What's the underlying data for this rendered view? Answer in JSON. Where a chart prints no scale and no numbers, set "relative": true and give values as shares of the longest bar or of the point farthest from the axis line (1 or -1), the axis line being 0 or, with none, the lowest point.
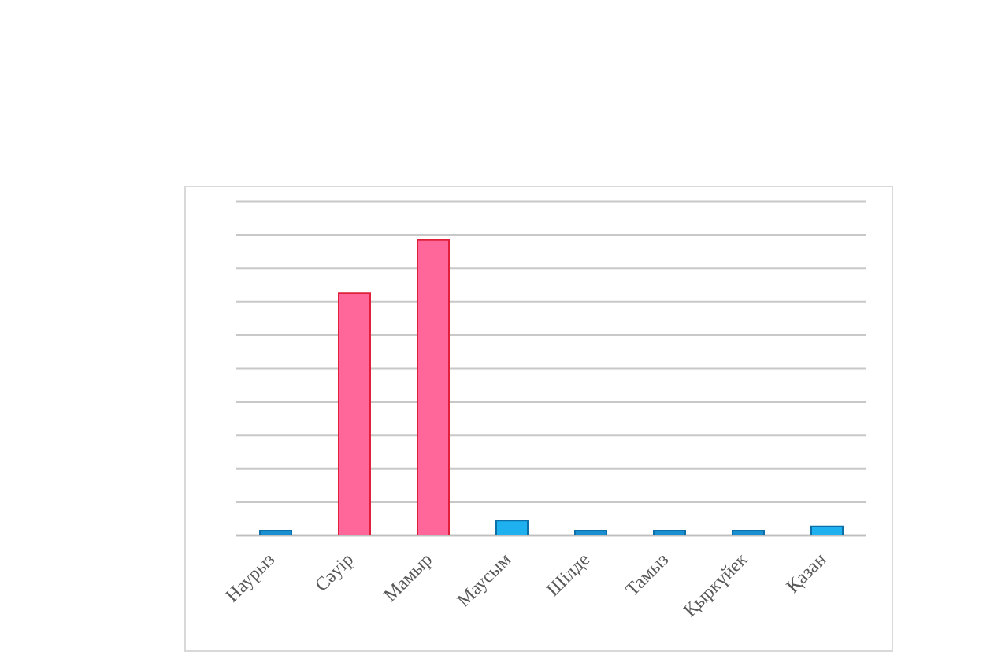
{
  "chart_data": {
    "type": "bar",
    "relative": true,
    "grid": "y",
    "categories": [
      "Наурыз",
      "Сәуір",
      "Мамыр",
      "Маусым",
      "Шілде",
      "Тамыз",
      "Қыркүйек",
      "Қазан"
    ],
    "values": [
      0,
      0.82,
      1,
      0.05,
      0,
      0,
      0,
      0.03
    ],
    "colors": [
      "#1a8fd0",
      "#ff6699",
      "#ff6699",
      "#1fb0f0",
      "#1a8fd0",
      "#1a8fd0",
      "#1a8fd0",
      "#1fb0f0"
    ]
  }
}
